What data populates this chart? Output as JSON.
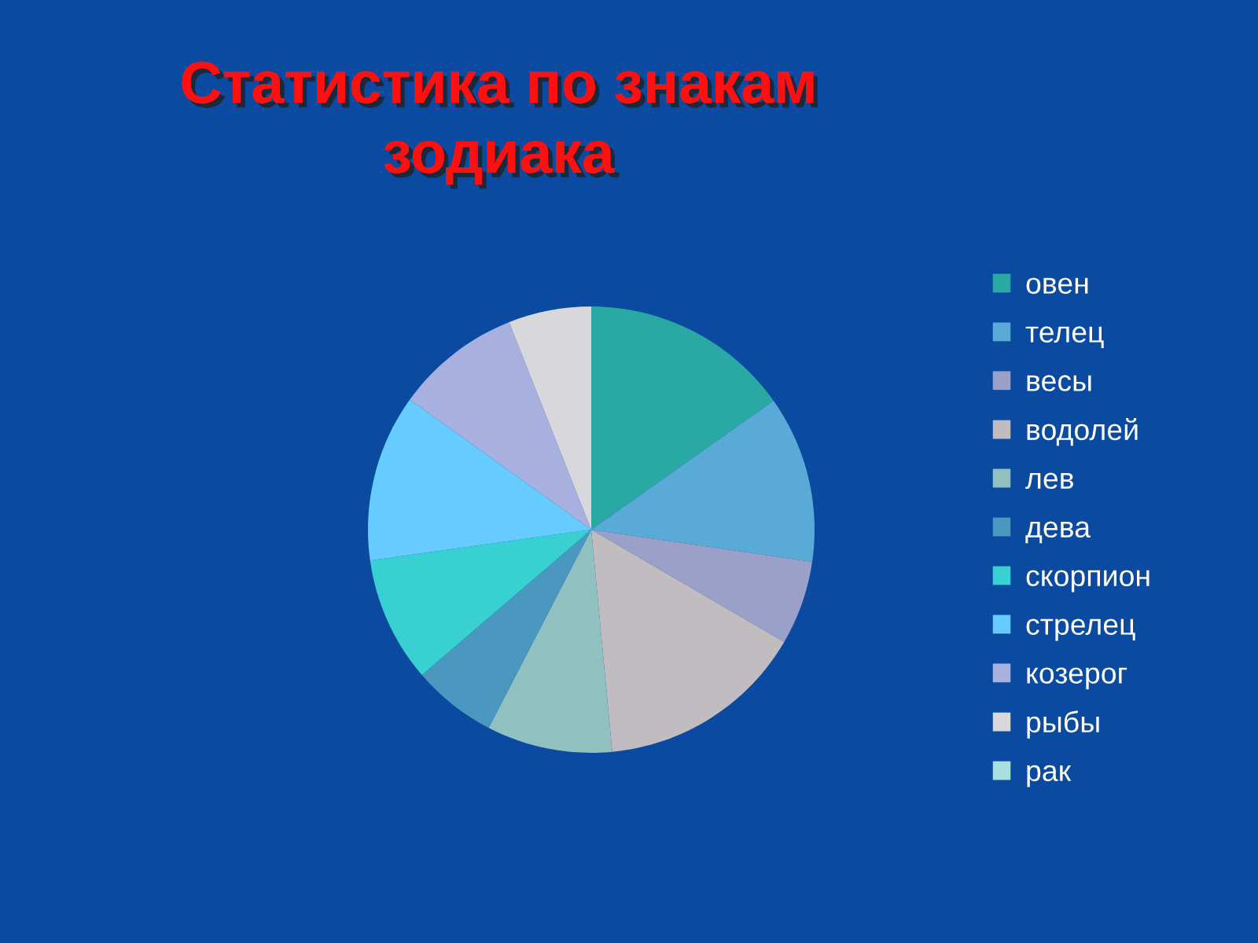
{
  "chart_data": {
    "type": "pie",
    "title": "Статистика по знакам\nзодиака",
    "categories": [
      "овен",
      "телец",
      "весы",
      "водолей",
      "лев",
      "дева",
      "скорпион",
      "стрелец",
      "козерог",
      "рыбы",
      "рак"
    ],
    "values": [
      15.2,
      12.1,
      6.1,
      15.1,
      9.1,
      6.1,
      9.1,
      12.1,
      9.1,
      6.0,
      0
    ],
    "colors": [
      "#2aa8a4",
      "#5aaad8",
      "#9aa0c8",
      "#c0bcc0",
      "#90c0c0",
      "#4a98c0",
      "#38d0d0",
      "#66ccff",
      "#a8b0e0",
      "#d8d8dc",
      "#a8e0e0"
    ],
    "legend": "right"
  }
}
